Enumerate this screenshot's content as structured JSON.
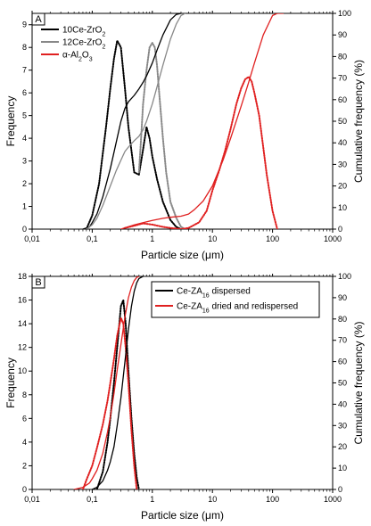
{
  "chart_data": [
    {
      "type": "line",
      "panel_label": "A",
      "xlabel": "Particle size (μm)",
      "ylabel_left": "Frequency",
      "ylabel_right": "Cumulative frequency (%)",
      "x_scale": "log",
      "xlim": [
        0.01,
        1000
      ],
      "ylim_left": [
        0,
        9.5
      ],
      "ylim_right": [
        0,
        100
      ],
      "x_ticks": [
        "0,01",
        "0,1",
        "1",
        "10",
        "100",
        "1000"
      ],
      "y_ticks_left": [
        "0",
        "1",
        "2",
        "3",
        "4",
        "5",
        "6",
        "7",
        "8",
        "9"
      ],
      "y_ticks_right": [
        "0",
        "10",
        "20",
        "30",
        "40",
        "50",
        "60",
        "70",
        "80",
        "90",
        "100"
      ],
      "legend": {
        "placement": "top-left",
        "entries": [
          "10Ce-ZrO2",
          "12Ce-ZrO2",
          "α-Al2O3"
        ]
      },
      "series": [
        {
          "name": "10Ce-ZrO2",
          "kind": "frequency",
          "color": "#000000",
          "x": [
            0.08,
            0.1,
            0.13,
            0.17,
            0.2,
            0.23,
            0.26,
            0.3,
            0.35,
            0.4,
            0.5,
            0.6,
            0.7,
            0.8,
            0.9,
            1.0,
            1.2,
            1.5,
            2.0,
            2.5,
            3.0
          ],
          "y": [
            0.0,
            0.6,
            2.0,
            4.5,
            6.2,
            7.5,
            8.3,
            8.0,
            6.2,
            4.5,
            2.5,
            2.4,
            3.5,
            4.5,
            4.0,
            3.2,
            2.2,
            1.2,
            0.4,
            0.1,
            0.0
          ]
        },
        {
          "name": "12Ce-ZrO2",
          "kind": "frequency",
          "color": "#888888",
          "x": [
            0.6,
            0.65,
            0.7,
            0.8,
            0.9,
            1.0,
            1.1,
            1.2,
            1.3,
            1.5,
            1.7,
            2.0,
            2.5,
            3.0,
            3.5
          ],
          "y": [
            2.5,
            4.0,
            5.5,
            7.0,
            8.0,
            8.2,
            8.0,
            7.2,
            6.0,
            4.0,
            2.5,
            1.2,
            0.5,
            0.1,
            0.0
          ]
        },
        {
          "name": "α-Al2O3",
          "kind": "frequency",
          "color": "#e02020",
          "x": [
            0.35,
            0.5,
            0.7,
            1.0,
            1.5,
            2.0,
            3.0,
            4.0,
            6.0,
            8.0,
            10,
            13,
            16,
            20,
            25,
            30,
            35,
            40,
            45,
            50,
            60,
            70,
            80,
            100,
            120
          ],
          "y": [
            0.05,
            0.15,
            0.25,
            0.2,
            0.1,
            0.05,
            0.0,
            0.05,
            0.3,
            0.8,
            1.7,
            2.6,
            3.4,
            4.4,
            5.5,
            6.2,
            6.6,
            6.7,
            6.5,
            6.0,
            5.0,
            3.6,
            2.4,
            0.8,
            0.0
          ]
        },
        {
          "name": "10Ce-ZrO2",
          "kind": "cumulative",
          "color": "#000000",
          "x": [
            0.07,
            0.09,
            0.1,
            0.12,
            0.15,
            0.2,
            0.25,
            0.3,
            0.35,
            0.4,
            0.5,
            0.6,
            0.7,
            0.8,
            1.0,
            1.2,
            1.5,
            2.0,
            2.5,
            3.0
          ],
          "y": [
            0,
            1,
            3,
            7,
            15,
            28,
            40,
            50,
            56,
            59,
            62,
            65,
            68,
            71,
            77,
            83,
            90,
            97,
            99.5,
            100
          ]
        },
        {
          "name": "12Ce-ZrO2",
          "kind": "cumulative",
          "color": "#888888",
          "x": [
            0.08,
            0.1,
            0.12,
            0.15,
            0.2,
            0.25,
            0.3,
            0.35,
            0.4,
            0.5,
            0.6,
            0.7,
            0.8,
            1.0,
            1.2,
            1.5,
            2.0,
            2.5,
            3.0,
            3.5
          ],
          "y": [
            0,
            2,
            5,
            11,
            20,
            27,
            32,
            36,
            38,
            41,
            43,
            46,
            50,
            58,
            66,
            76,
            88,
            95,
            99,
            100
          ]
        },
        {
          "name": "α-Al2O3",
          "kind": "cumulative",
          "color": "#e02020",
          "x": [
            0.3,
            0.5,
            0.7,
            1.0,
            1.5,
            2.0,
            3.0,
            4.0,
            5.0,
            7.0,
            10,
            15,
            20,
            30,
            40,
            50,
            70,
            100,
            120,
            150
          ],
          "y": [
            0,
            2,
            3,
            4,
            5,
            5.5,
            6,
            7,
            9,
            13,
            20,
            32,
            42,
            57,
            68,
            77,
            90,
            99,
            100,
            100
          ]
        }
      ]
    },
    {
      "type": "line",
      "panel_label": "B",
      "xlabel": "Particle size (μm)",
      "ylabel_left": "Frequency",
      "ylabel_right": "Cumulative frequency (%)",
      "x_scale": "log",
      "xlim": [
        0.01,
        1000
      ],
      "ylim_left": [
        0,
        18
      ],
      "ylim_right": [
        0,
        100
      ],
      "x_ticks": [
        "0,01",
        "0,1",
        "1",
        "10",
        "100",
        "1000"
      ],
      "y_ticks_left": [
        "0",
        "2",
        "4",
        "6",
        "8",
        "10",
        "12",
        "14",
        "16",
        "18"
      ],
      "y_ticks_right": [
        "0",
        "10",
        "20",
        "30",
        "40",
        "50",
        "60",
        "70",
        "80",
        "90",
        "100"
      ],
      "legend": {
        "placement": "top-right",
        "entries": [
          "Ce-ZA16 dispersed",
          "Ce-ZA16 dried and redispersed"
        ]
      },
      "series": [
        {
          "name": "Ce-ZA16 dispersed",
          "kind": "frequency",
          "color": "#000000",
          "x": [
            0.12,
            0.15,
            0.18,
            0.2,
            0.23,
            0.26,
            0.3,
            0.33,
            0.36,
            0.4,
            0.45,
            0.5,
            0.55,
            0.6
          ],
          "y": [
            0,
            1.5,
            4,
            6,
            9,
            12,
            15.5,
            16,
            14,
            10,
            6,
            3,
            1,
            0
          ]
        },
        {
          "name": "Ce-ZA16 dried and redispersed",
          "kind": "frequency",
          "color": "#e02020",
          "x": [
            0.07,
            0.08,
            0.1,
            0.12,
            0.15,
            0.18,
            0.2,
            0.23,
            0.26,
            0.3,
            0.33,
            0.36,
            0.4,
            0.45,
            0.5,
            0.55
          ],
          "y": [
            0,
            0.8,
            2,
            3.5,
            5.5,
            7.5,
            9,
            11,
            13,
            14.5,
            14,
            12,
            9,
            5,
            2,
            0
          ]
        },
        {
          "name": "Ce-ZA16 dispersed",
          "kind": "cumulative",
          "color": "#000000",
          "x": [
            0.1,
            0.12,
            0.15,
            0.18,
            0.2,
            0.23,
            0.26,
            0.3,
            0.35,
            0.4,
            0.45,
            0.5,
            0.55,
            0.6,
            0.7
          ],
          "y": [
            0,
            1,
            4,
            9,
            13,
            20,
            30,
            43,
            60,
            75,
            86,
            93,
            97,
            99,
            100
          ]
        },
        {
          "name": "Ce-ZA16 dried and redispersed",
          "kind": "cumulative",
          "color": "#e02020",
          "x": [
            0.05,
            0.07,
            0.09,
            0.1,
            0.12,
            0.15,
            0.18,
            0.2,
            0.23,
            0.26,
            0.3,
            0.35,
            0.4,
            0.45,
            0.5,
            0.55,
            0.6
          ],
          "y": [
            0,
            1,
            3,
            5,
            9,
            17,
            27,
            34,
            45,
            56,
            68,
            81,
            90,
            95,
            98,
            99.5,
            100
          ]
        }
      ]
    }
  ]
}
